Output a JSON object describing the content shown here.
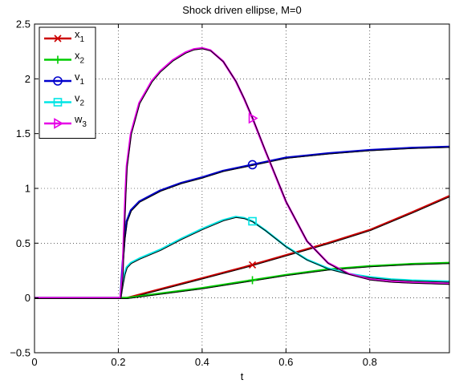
{
  "chart_data": {
    "type": "line",
    "title": "Shock driven ellipse, M=0",
    "xlabel": "t",
    "ylabel": "",
    "xlim": [
      0,
      0.99
    ],
    "ylim": [
      -0.5,
      2.5
    ],
    "xticks": [
      0,
      0.2,
      0.4,
      0.6,
      0.8
    ],
    "xtick_labels": [
      "0",
      "0.2",
      "0.4",
      "0.6",
      "0.8"
    ],
    "yticks": [
      -0.5,
      0,
      0.5,
      1,
      1.5,
      2,
      2.5
    ],
    "ytick_labels": [
      "−0.5",
      "0",
      "0.5",
      "1",
      "1.5",
      "2",
      "2.5"
    ],
    "grid": "dotted",
    "legend_position": "top-left",
    "reference_line_color": "#000000",
    "series": [
      {
        "name": "x",
        "sub": "1",
        "color": "#cc0000",
        "marker": "x",
        "marker_x": 0.52,
        "x": [
          0,
          0.21,
          0.22,
          0.3,
          0.4,
          0.5,
          0.6,
          0.7,
          0.8,
          0.9,
          0.99
        ],
        "y": [
          0,
          0,
          0,
          0.08,
          0.18,
          0.28,
          0.39,
          0.5,
          0.62,
          0.78,
          0.93
        ]
      },
      {
        "name": "x",
        "sub": "2",
        "color": "#00cc00",
        "marker": "+",
        "marker_x": 0.52,
        "x": [
          0,
          0.21,
          0.22,
          0.3,
          0.4,
          0.5,
          0.6,
          0.7,
          0.8,
          0.9,
          0.99
        ],
        "y": [
          0,
          0,
          0,
          0.04,
          0.09,
          0.15,
          0.21,
          0.26,
          0.29,
          0.31,
          0.32
        ]
      },
      {
        "name": "v",
        "sub": "1",
        "color": "#0000cc",
        "marker": "o",
        "marker_x": 0.52,
        "x": [
          0,
          0.205,
          0.21,
          0.215,
          0.22,
          0.23,
          0.25,
          0.3,
          0.35,
          0.4,
          0.45,
          0.5,
          0.55,
          0.6,
          0.7,
          0.8,
          0.9,
          0.99
        ],
        "y": [
          0,
          0,
          0.3,
          0.55,
          0.7,
          0.8,
          0.88,
          0.98,
          1.05,
          1.1,
          1.16,
          1.2,
          1.24,
          1.28,
          1.32,
          1.35,
          1.37,
          1.38
        ]
      },
      {
        "name": "v",
        "sub": "2",
        "color": "#00e5e5",
        "marker": "s",
        "marker_x": 0.52,
        "x": [
          0,
          0.205,
          0.21,
          0.215,
          0.22,
          0.23,
          0.25,
          0.3,
          0.35,
          0.4,
          0.45,
          0.48,
          0.5,
          0.52,
          0.55,
          0.6,
          0.65,
          0.7,
          0.75,
          0.8,
          0.85,
          0.9,
          0.99
        ],
        "y": [
          0,
          0,
          0.12,
          0.22,
          0.28,
          0.32,
          0.36,
          0.44,
          0.54,
          0.63,
          0.71,
          0.74,
          0.73,
          0.7,
          0.62,
          0.47,
          0.35,
          0.27,
          0.22,
          0.19,
          0.17,
          0.16,
          0.15
        ]
      },
      {
        "name": "w",
        "sub": "3",
        "color": "#e600e6",
        "marker": ">",
        "marker_x": 0.52,
        "x": [
          0,
          0.205,
          0.21,
          0.213,
          0.217,
          0.22,
          0.23,
          0.25,
          0.28,
          0.3,
          0.33,
          0.36,
          0.38,
          0.4,
          0.42,
          0.45,
          0.48,
          0.5,
          0.52,
          0.55,
          0.6,
          0.65,
          0.7,
          0.75,
          0.8,
          0.85,
          0.9,
          0.99
        ],
        "y": [
          0,
          0,
          0.2,
          0.55,
          0.95,
          1.2,
          1.5,
          1.78,
          1.98,
          2.07,
          2.17,
          2.24,
          2.27,
          2.28,
          2.26,
          2.16,
          1.98,
          1.82,
          1.64,
          1.35,
          0.88,
          0.52,
          0.32,
          0.22,
          0.17,
          0.15,
          0.14,
          0.13
        ]
      }
    ]
  }
}
